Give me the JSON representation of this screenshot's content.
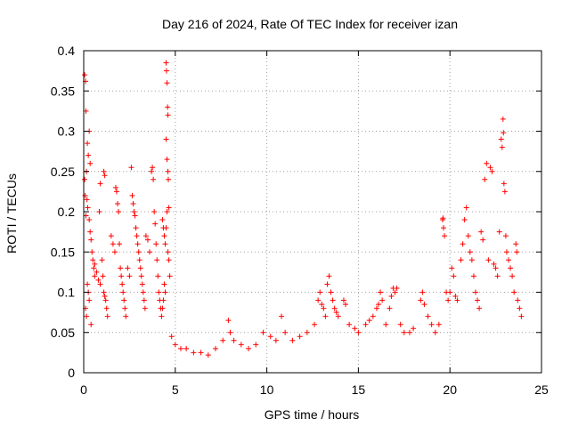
{
  "chart_data": {
    "type": "scatter",
    "title": "Day 216 of 2024, Rate Of TEC Index for receiver izan",
    "xlabel": "GPS time / hours",
    "ylabel": "ROTI / TECUs",
    "xlim": [
      0,
      25
    ],
    "ylim": [
      0,
      0.4
    ],
    "x_ticks": [
      0,
      5,
      10,
      15,
      20,
      25
    ],
    "x_tick_labels": [
      "0",
      "5",
      "10",
      "15",
      "20",
      "25"
    ],
    "y_ticks": [
      0,
      0.05,
      0.1,
      0.15,
      0.2,
      0.25,
      0.3,
      0.35,
      0.4
    ],
    "y_tick_labels": [
      "0",
      "0.05",
      "0.1",
      "0.15",
      "0.2",
      "0.25",
      "0.3",
      "0.35",
      "0.4"
    ],
    "grid": true,
    "marker": "plus",
    "color": "#ff0000",
    "series": [
      {
        "points": [
          [
            0.05,
            0.37
          ],
          [
            0.1,
            0.362
          ],
          [
            0.12,
            0.325
          ],
          [
            0.2,
            0.285
          ],
          [
            0.25,
            0.27
          ],
          [
            0.3,
            0.3
          ],
          [
            0.35,
            0.26
          ],
          [
            0.15,
            0.25
          ],
          [
            0.05,
            0.24
          ],
          [
            0.08,
            0.22
          ],
          [
            0.18,
            0.215
          ],
          [
            0.22,
            0.205
          ],
          [
            0.12,
            0.195
          ],
          [
            0.3,
            0.19
          ],
          [
            0.35,
            0.175
          ],
          [
            0.4,
            0.165
          ],
          [
            0.45,
            0.15
          ],
          [
            0.5,
            0.14
          ],
          [
            0.55,
            0.13
          ],
          [
            0.6,
            0.12
          ],
          [
            0.2,
            0.11
          ],
          [
            0.25,
            0.1
          ],
          [
            0.3,
            0.09
          ],
          [
            0.1,
            0.08
          ],
          [
            0.15,
            0.07
          ],
          [
            0.4,
            0.06
          ],
          [
            0.6,
            0.135
          ],
          [
            0.7,
            0.125
          ],
          [
            0.8,
            0.115
          ],
          [
            0.9,
            0.11
          ],
          [
            1.0,
            0.14
          ],
          [
            1.05,
            0.12
          ],
          [
            1.1,
            0.1
          ],
          [
            1.15,
            0.095
          ],
          [
            1.2,
            0.09
          ],
          [
            1.25,
            0.08
          ],
          [
            1.3,
            0.07
          ],
          [
            1.1,
            0.25
          ],
          [
            1.15,
            0.245
          ],
          [
            0.9,
            0.235
          ],
          [
            0.85,
            0.2
          ],
          [
            1.5,
            0.17
          ],
          [
            1.6,
            0.16
          ],
          [
            1.7,
            0.15
          ],
          [
            1.75,
            0.23
          ],
          [
            1.8,
            0.225
          ],
          [
            1.85,
            0.21
          ],
          [
            1.9,
            0.2
          ],
          [
            1.95,
            0.16
          ],
          [
            2.0,
            0.13
          ],
          [
            2.05,
            0.12
          ],
          [
            2.1,
            0.11
          ],
          [
            2.15,
            0.1
          ],
          [
            2.2,
            0.09
          ],
          [
            2.25,
            0.08
          ],
          [
            2.3,
            0.07
          ],
          [
            2.4,
            0.13
          ],
          [
            2.5,
            0.12
          ],
          [
            2.6,
            0.255
          ],
          [
            2.65,
            0.22
          ],
          [
            2.7,
            0.21
          ],
          [
            2.75,
            0.2
          ],
          [
            2.8,
            0.195
          ],
          [
            2.85,
            0.18
          ],
          [
            2.9,
            0.17
          ],
          [
            2.95,
            0.16
          ],
          [
            3.0,
            0.15
          ],
          [
            3.05,
            0.14
          ],
          [
            3.1,
            0.13
          ],
          [
            3.15,
            0.12
          ],
          [
            3.2,
            0.11
          ],
          [
            3.25,
            0.1
          ],
          [
            3.3,
            0.09
          ],
          [
            3.35,
            0.08
          ],
          [
            3.4,
            0.17
          ],
          [
            3.5,
            0.165
          ],
          [
            3.6,
            0.15
          ],
          [
            3.7,
            0.25
          ],
          [
            3.75,
            0.255
          ],
          [
            3.8,
            0.24
          ],
          [
            3.85,
            0.2
          ],
          [
            3.9,
            0.185
          ],
          [
            3.95,
            0.16
          ],
          [
            4.0,
            0.14
          ],
          [
            4.05,
            0.12
          ],
          [
            4.1,
            0.1
          ],
          [
            4.15,
            0.09
          ],
          [
            4.2,
            0.08
          ],
          [
            4.3,
            0.19
          ],
          [
            4.35,
            0.18
          ],
          [
            4.4,
            0.17
          ],
          [
            4.45,
            0.16
          ],
          [
            4.5,
            0.385
          ],
          [
            4.52,
            0.375
          ],
          [
            4.55,
            0.36
          ],
          [
            4.58,
            0.33
          ],
          [
            4.6,
            0.32
          ],
          [
            4.5,
            0.29
          ],
          [
            4.55,
            0.265
          ],
          [
            4.6,
            0.25
          ],
          [
            4.62,
            0.24
          ],
          [
            4.65,
            0.205
          ],
          [
            4.55,
            0.2
          ],
          [
            4.5,
            0.18
          ],
          [
            4.6,
            0.15
          ],
          [
            4.65,
            0.14
          ],
          [
            4.7,
            0.12
          ],
          [
            4.4,
            0.11
          ],
          [
            4.45,
            0.1
          ],
          [
            4.35,
            0.09
          ],
          [
            4.3,
            0.08
          ],
          [
            4.25,
            0.07
          ],
          [
            4.8,
            0.045
          ],
          [
            5.0,
            0.035
          ],
          [
            5.3,
            0.03
          ],
          [
            5.6,
            0.03
          ],
          [
            6.0,
            0.025
          ],
          [
            6.4,
            0.025
          ],
          [
            6.8,
            0.022
          ],
          [
            7.2,
            0.03
          ],
          [
            7.6,
            0.04
          ],
          [
            7.9,
            0.065
          ],
          [
            8.0,
            0.05
          ],
          [
            8.2,
            0.04
          ],
          [
            8.6,
            0.035
          ],
          [
            9.0,
            0.03
          ],
          [
            9.4,
            0.035
          ],
          [
            9.8,
            0.05
          ],
          [
            10.2,
            0.045
          ],
          [
            10.5,
            0.04
          ],
          [
            10.8,
            0.07
          ],
          [
            11.0,
            0.05
          ],
          [
            11.4,
            0.04
          ],
          [
            11.8,
            0.045
          ],
          [
            12.2,
            0.05
          ],
          [
            12.6,
            0.06
          ],
          [
            12.8,
            0.09
          ],
          [
            12.9,
            0.1
          ],
          [
            13.0,
            0.085
          ],
          [
            13.1,
            0.08
          ],
          [
            13.2,
            0.07
          ],
          [
            13.3,
            0.11
          ],
          [
            13.4,
            0.12
          ],
          [
            13.5,
            0.1
          ],
          [
            13.6,
            0.09
          ],
          [
            13.7,
            0.08
          ],
          [
            13.8,
            0.075
          ],
          [
            13.9,
            0.07
          ],
          [
            14.2,
            0.09
          ],
          [
            14.3,
            0.085
          ],
          [
            14.5,
            0.06
          ],
          [
            14.8,
            0.055
          ],
          [
            15.0,
            0.05
          ],
          [
            15.4,
            0.06
          ],
          [
            15.6,
            0.065
          ],
          [
            15.8,
            0.07
          ],
          [
            16.0,
            0.08
          ],
          [
            16.1,
            0.085
          ],
          [
            16.2,
            0.1
          ],
          [
            16.3,
            0.09
          ],
          [
            16.5,
            0.06
          ],
          [
            16.7,
            0.08
          ],
          [
            16.8,
            0.095
          ],
          [
            16.9,
            0.105
          ],
          [
            17.0,
            0.1
          ],
          [
            17.1,
            0.105
          ],
          [
            17.3,
            0.06
          ],
          [
            17.5,
            0.05
          ],
          [
            17.8,
            0.05
          ],
          [
            18.0,
            0.055
          ],
          [
            18.4,
            0.09
          ],
          [
            18.5,
            0.1
          ],
          [
            18.6,
            0.085
          ],
          [
            18.8,
            0.07
          ],
          [
            19.0,
            0.06
          ],
          [
            19.2,
            0.05
          ],
          [
            19.4,
            0.06
          ],
          [
            19.6,
            0.19
          ],
          [
            19.62,
            0.192
          ],
          [
            19.65,
            0.18
          ],
          [
            19.7,
            0.17
          ],
          [
            19.8,
            0.1
          ],
          [
            19.9,
            0.09
          ],
          [
            20.0,
            0.1
          ],
          [
            20.1,
            0.13
          ],
          [
            20.2,
            0.12
          ],
          [
            20.3,
            0.095
          ],
          [
            20.4,
            0.09
          ],
          [
            20.6,
            0.14
          ],
          [
            20.7,
            0.16
          ],
          [
            20.8,
            0.19
          ],
          [
            20.9,
            0.205
          ],
          [
            21.0,
            0.17
          ],
          [
            21.1,
            0.15
          ],
          [
            21.2,
            0.14
          ],
          [
            21.3,
            0.12
          ],
          [
            21.4,
            0.1
          ],
          [
            21.5,
            0.09
          ],
          [
            21.6,
            0.08
          ],
          [
            21.7,
            0.175
          ],
          [
            21.8,
            0.165
          ],
          [
            21.9,
            0.24
          ],
          [
            22.0,
            0.26
          ],
          [
            22.1,
            0.14
          ],
          [
            22.2,
            0.255
          ],
          [
            22.3,
            0.25
          ],
          [
            22.4,
            0.135
          ],
          [
            22.5,
            0.13
          ],
          [
            22.6,
            0.12
          ],
          [
            22.7,
            0.175
          ],
          [
            22.8,
            0.29
          ],
          [
            22.85,
            0.28
          ],
          [
            22.9,
            0.315
          ],
          [
            22.92,
            0.298
          ],
          [
            22.95,
            0.235
          ],
          [
            23.0,
            0.225
          ],
          [
            23.05,
            0.17
          ],
          [
            23.1,
            0.15
          ],
          [
            23.2,
            0.14
          ],
          [
            23.3,
            0.13
          ],
          [
            23.4,
            0.12
          ],
          [
            23.5,
            0.1
          ],
          [
            23.6,
            0.16
          ],
          [
            23.65,
            0.15
          ],
          [
            23.7,
            0.09
          ],
          [
            23.8,
            0.08
          ],
          [
            23.9,
            0.07
          ]
        ]
      }
    ]
  }
}
